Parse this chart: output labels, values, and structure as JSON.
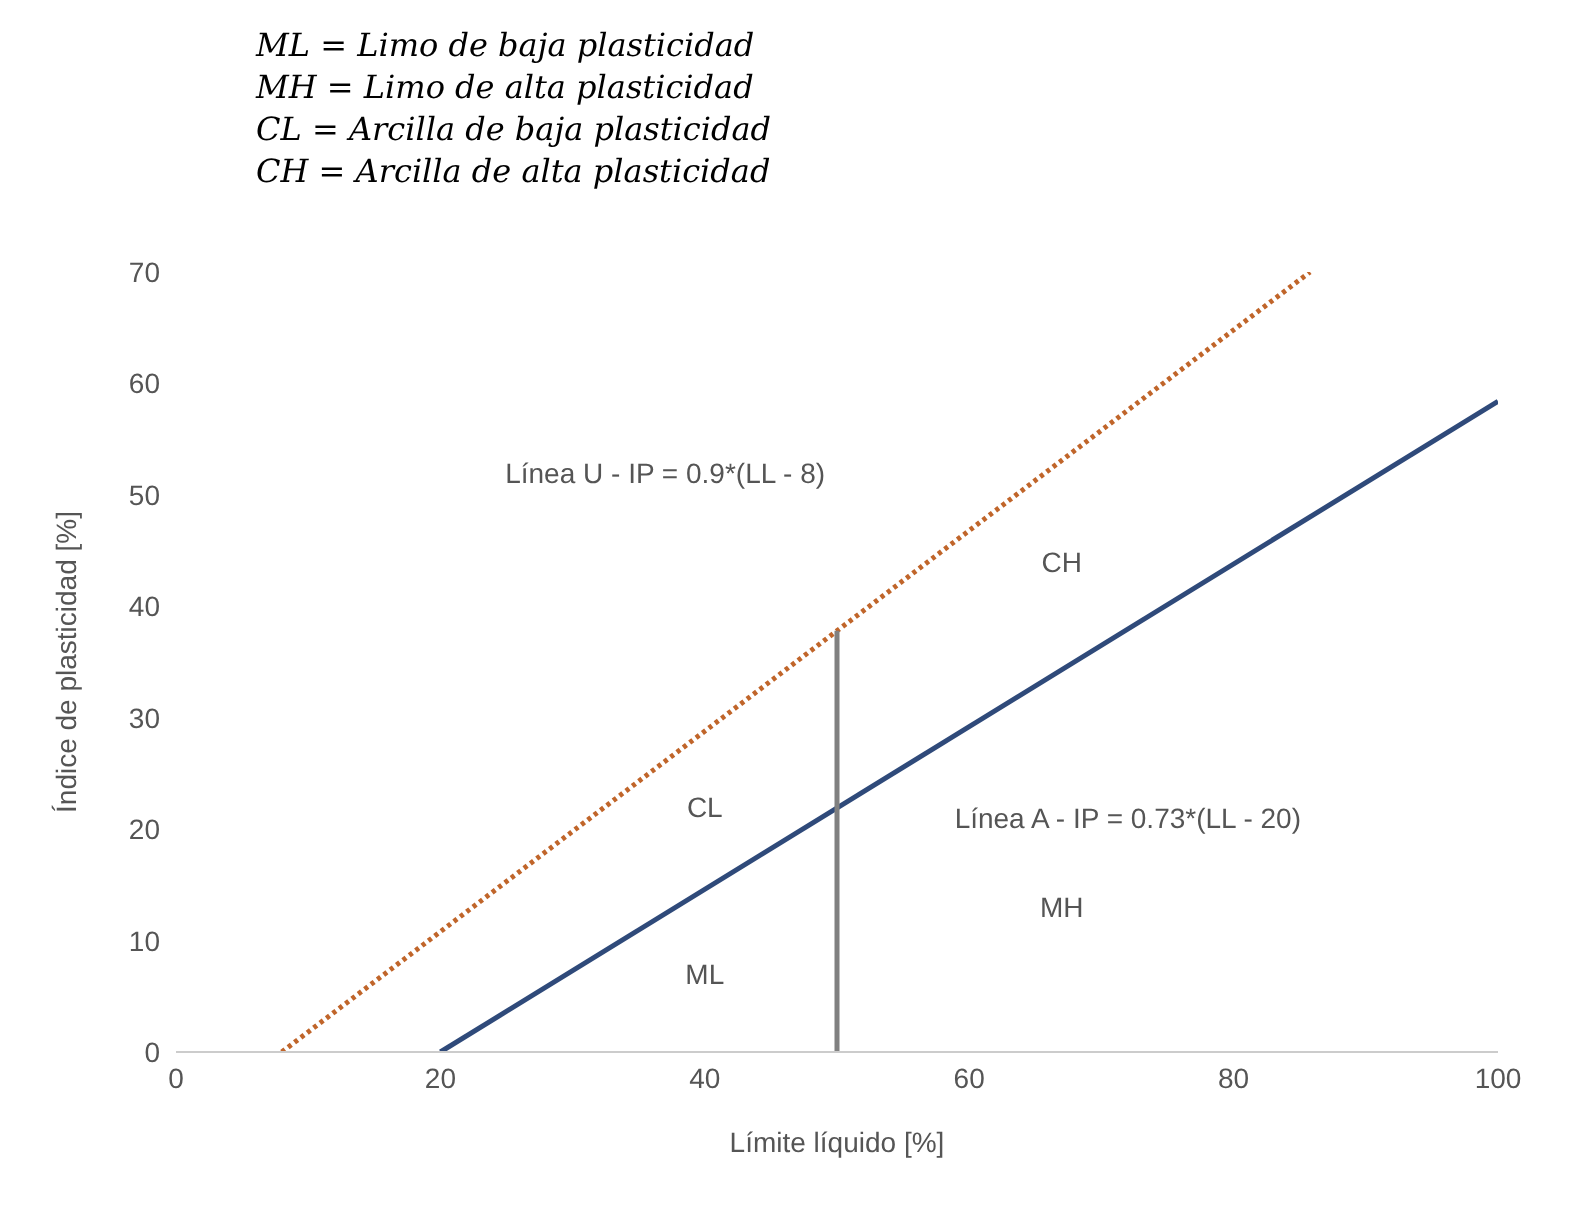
{
  "chart_data": {
    "type": "line",
    "xlabel": "Límite líquido [%]",
    "ylabel": "Índice de plasticidad [%]",
    "xlim": [
      0,
      100
    ],
    "xticks": [
      0,
      20,
      40,
      60,
      80,
      100
    ],
    "ylim": [
      0,
      70
    ],
    "yticks": [
      0,
      10,
      20,
      30,
      40,
      50,
      60,
      70
    ],
    "grid": false,
    "marker": "none",
    "series": [
      {
        "color": "#c0652a",
        "line_style": "dotted",
        "x": [
          8,
          85.78
        ],
        "values": [
          0,
          70
        ]
      },
      {
        "color": "#2f4a7a",
        "line_style": "solid",
        "x": [
          20,
          100
        ],
        "values": [
          0,
          58.4
        ]
      },
      {
        "color": "#808080",
        "line_style": "solid",
        "x": [
          50,
          50
        ],
        "values": [
          0,
          37.8
        ]
      }
    ],
    "annotations": [
      "ML = Limo de baja plasticidad",
      "MH = Limo de alta plasticidad",
      "CL = Arcilla de baja plasticidad",
      "CH = Arcilla de alta plasticidad",
      "Línea U  -  IP = 0.9*(LL - 8)",
      "Línea A  -  IP = 0.73*(LL - 20)",
      "CL",
      "ML",
      "CH",
      "MH"
    ]
  }
}
